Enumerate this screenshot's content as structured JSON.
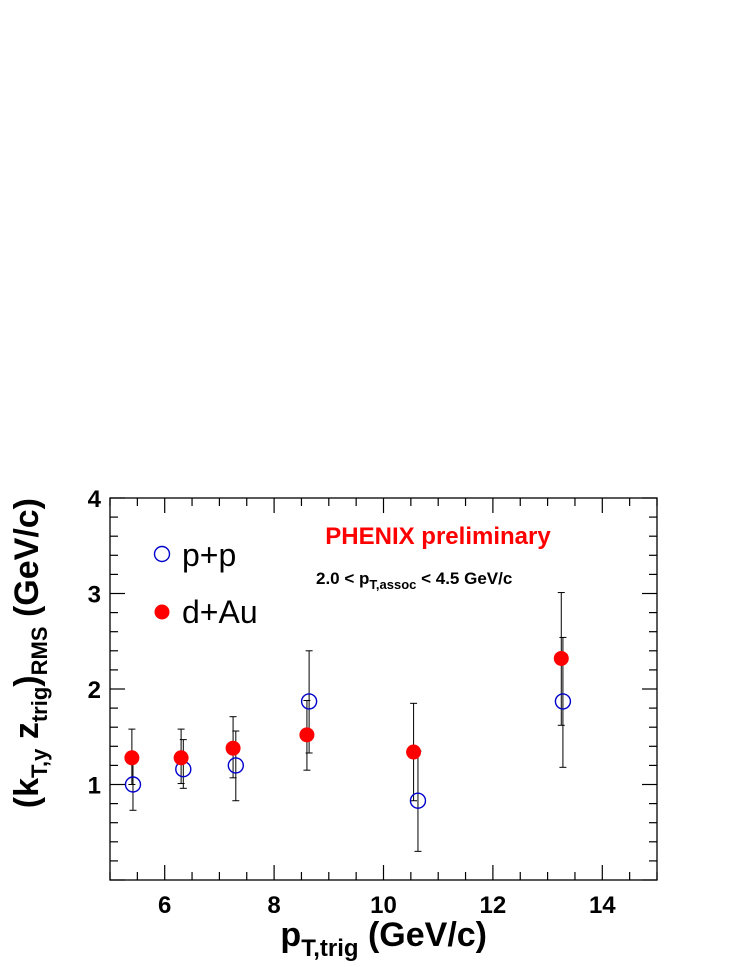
{
  "chart_data": {
    "type": "scatter",
    "xlim": [
      5,
      15
    ],
    "ylim": [
      0,
      4
    ],
    "x_ticks": [
      6,
      8,
      10,
      12,
      14
    ],
    "y_ticks": [
      1,
      2,
      3,
      4
    ],
    "x_tick_labels": [
      "6",
      "8",
      "10",
      "12",
      "14"
    ],
    "y_tick_labels": [
      "1",
      "2",
      "3",
      "4"
    ],
    "xlabel": {
      "main": "p",
      "sub": "T,trig",
      "rest": " (GeV/c)"
    },
    "ylabel": {
      "p1": "(k",
      "s1": "T,y",
      "p2": " z",
      "s2": "trig",
      "p3": ")",
      "s3": "RMS",
      "p4": " (GeV/c)"
    },
    "annotations": {
      "title": "PHENIX preliminary",
      "range_pre": "2.0 < p",
      "range_sub": "T,assoc",
      "range_post": " < 4.5 GeV/c"
    },
    "legend_placement": "top-left",
    "grid": false,
    "series": [
      {
        "name": "p+p",
        "marker": "open-circle",
        "color": "#0000cc",
        "points": [
          {
            "x": 5.42,
            "y": 1.0,
            "ylo": 0.73,
            "yhi": 1.26
          },
          {
            "x": 6.34,
            "y": 1.16,
            "ylo": 0.96,
            "yhi": 1.47
          },
          {
            "x": 7.3,
            "y": 1.2,
            "ylo": 0.83,
            "yhi": 1.56
          },
          {
            "x": 8.64,
            "y": 1.87,
            "ylo": 1.33,
            "yhi": 2.4
          },
          {
            "x": 10.63,
            "y": 0.83,
            "ylo": 0.3,
            "yhi": 1.35
          },
          {
            "x": 13.28,
            "y": 1.87,
            "ylo": 1.18,
            "yhi": 2.54
          }
        ]
      },
      {
        "name": "d+Au",
        "marker": "filled-circle",
        "color": "#ff0000",
        "points": [
          {
            "x": 5.4,
            "y": 1.28,
            "ylo": 1.0,
            "yhi": 1.58
          },
          {
            "x": 6.3,
            "y": 1.28,
            "ylo": 1.01,
            "yhi": 1.58
          },
          {
            "x": 7.25,
            "y": 1.38,
            "ylo": 1.07,
            "yhi": 1.71
          },
          {
            "x": 8.6,
            "y": 1.52,
            "ylo": 1.15,
            "yhi": 1.88
          },
          {
            "x": 10.55,
            "y": 1.34,
            "ylo": 0.83,
            "yhi": 1.85
          },
          {
            "x": 13.25,
            "y": 2.32,
            "ylo": 1.62,
            "yhi": 3.01
          }
        ]
      }
    ]
  }
}
